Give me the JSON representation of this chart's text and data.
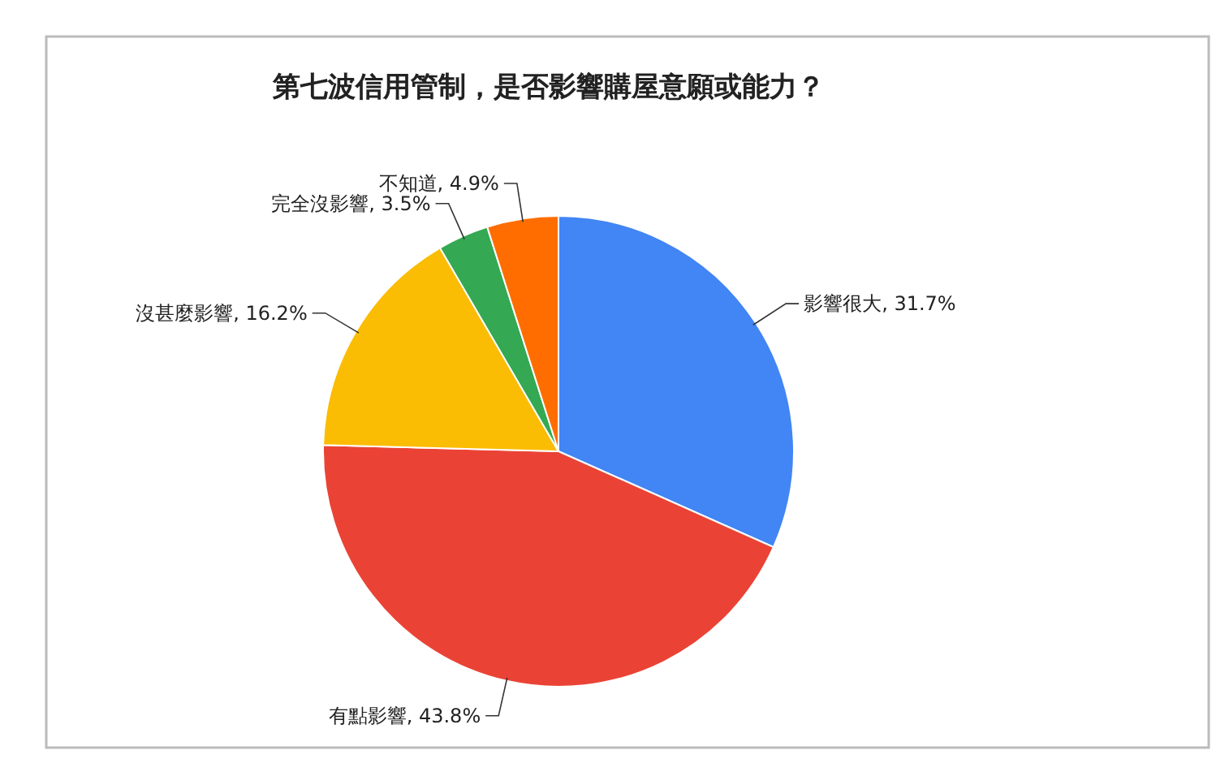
{
  "chart_data": {
    "type": "pie",
    "title": "第七波信用管制，是否影響購屋意願或能力？",
    "categories": [
      "影響很大",
      "有點影響",
      "沒甚麼影響",
      "完全沒影響",
      "不知道"
    ],
    "values": [
      31.7,
      43.8,
      16.2,
      3.5,
      4.9
    ],
    "value_labels": [
      "31.7%",
      "43.8%",
      "16.2%",
      "3.5%",
      "4.9%"
    ],
    "colors": [
      "#4285f4",
      "#ea4335",
      "#fbbc04",
      "#34a853",
      "#ff6d01"
    ],
    "legend": false
  }
}
